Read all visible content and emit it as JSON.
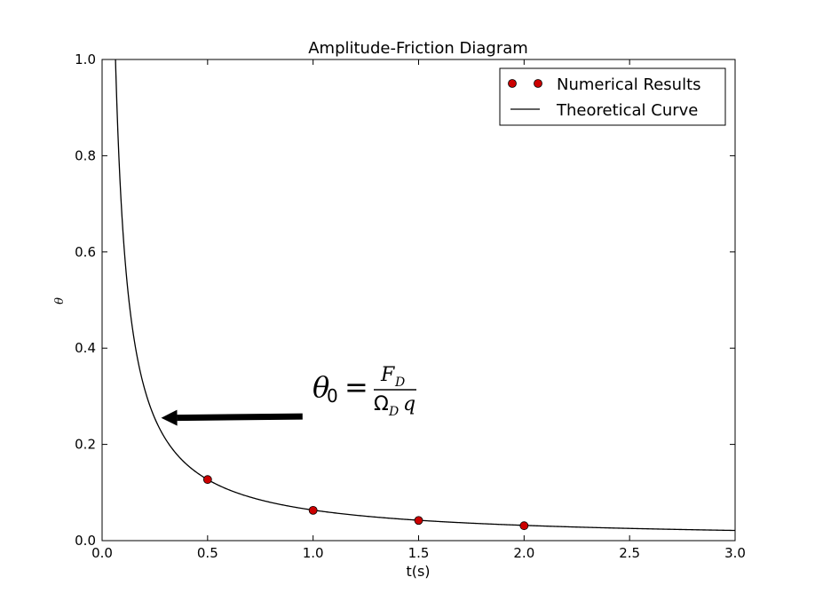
{
  "chart_data": {
    "type": "line",
    "title": "Amplitude-Friction Diagram",
    "xlabel": "t(s)",
    "ylabel": "θ",
    "xlim": [
      0.0,
      3.0
    ],
    "ylim": [
      0.0,
      1.0
    ],
    "xticks": [
      0.0,
      0.5,
      1.0,
      1.5,
      2.0,
      2.5,
      3.0
    ],
    "yticks": [
      0.0,
      0.2,
      0.4,
      0.6,
      0.8,
      1.0
    ],
    "xtick_labels": [
      "0.0",
      "0.5",
      "1.0",
      "1.5",
      "2.0",
      "2.5",
      "3.0"
    ],
    "ytick_labels": [
      "0.0",
      "0.2",
      "0.4",
      "0.6",
      "0.8",
      "1.0"
    ],
    "grid": false,
    "legend_position": "top-right",
    "series": [
      {
        "name": "Numerical Results",
        "kind": "scatter",
        "marker": "circle",
        "color": "#cc0000",
        "x": [
          0.5,
          1.0,
          1.5,
          2.0
        ],
        "y": [
          0.127,
          0.063,
          0.042,
          0.031
        ]
      },
      {
        "name": "Theoretical Curve",
        "kind": "line",
        "color": "#000000",
        "formula_coefficient": 0.0635,
        "x_start": 0.06,
        "x_end": 3.0
      }
    ],
    "annotation": {
      "theta": "θ",
      "theta_sub": "0",
      "equals": "=",
      "numerator": "F",
      "numerator_sub": "D",
      "denominator": "Ω",
      "denominator_sub": "D",
      "denominator_tail": "q",
      "arrow_from": [
        0.95,
        0.258
      ],
      "arrow_to": [
        0.28,
        0.255
      ]
    }
  }
}
